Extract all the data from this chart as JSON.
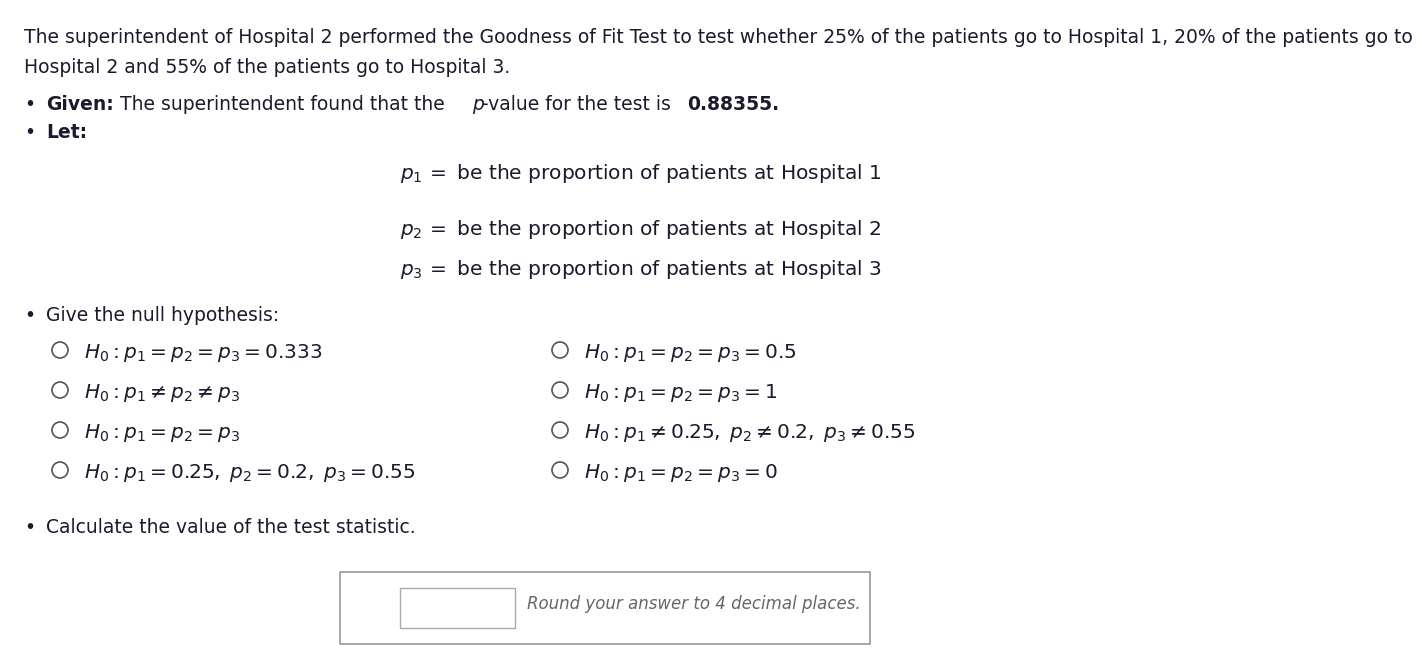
{
  "bg_color": "#ffffff",
  "text_color": "#1a1a2e",
  "title_line1": "The superintendent of Hospital 2 performed the Goodness of Fit Test to test whether 25% of the patients go to Hospital 1, 20% of the patients go to",
  "title_line2": "Hospital 2 and 55% of the patients go to Hospital 3.",
  "given_bold": "Given:",
  "given_rest": " The superintendent found that the ",
  "given_p_italic": "p",
  "given_tail": "-value for the test is ",
  "given_bold2": "0.88355.",
  "let_bold": "Let:",
  "p1_def": "$p_1\\,=$ be the proportion of patients at Hospital 1",
  "p2_def": "$p_2\\,=$ be the proportion of patients at Hospital 2",
  "p3_def": "$p_3\\,=$ be the proportion of patients at Hospital 3",
  "null_label": "Give the null hypothesis:",
  "options_left": [
    "$H_0 : p_1 = p_2 = p_3 = 0.333$",
    "$H_0 : p_1 \\neq p_2 \\neq p_3$",
    "$H_0 : p_1 = p_2 = p_3$",
    "$H_0 : p_1 = 0.25,\\; p_2 = 0.2,\\; p_3 = 0.55$"
  ],
  "options_right": [
    "$H_0 : p_1 = p_2 = p_3 = 0.5$",
    "$H_0 : p_1 = p_2 = p_3 = 1$",
    "$H_0 : p_1 \\neq 0.25,\\; p_2 \\neq 0.2,\\; p_3 \\neq 0.55$",
    "$H_0 : p_1 = p_2 = p_3 = 0$"
  ],
  "calc_label": "Calculate the value of the test statistic.",
  "round_text": "Round your answer to 4 decimal places.",
  "fs_title": 13.5,
  "fs_body": 13.5,
  "fs_math": 14.5,
  "fs_round": 12.0
}
